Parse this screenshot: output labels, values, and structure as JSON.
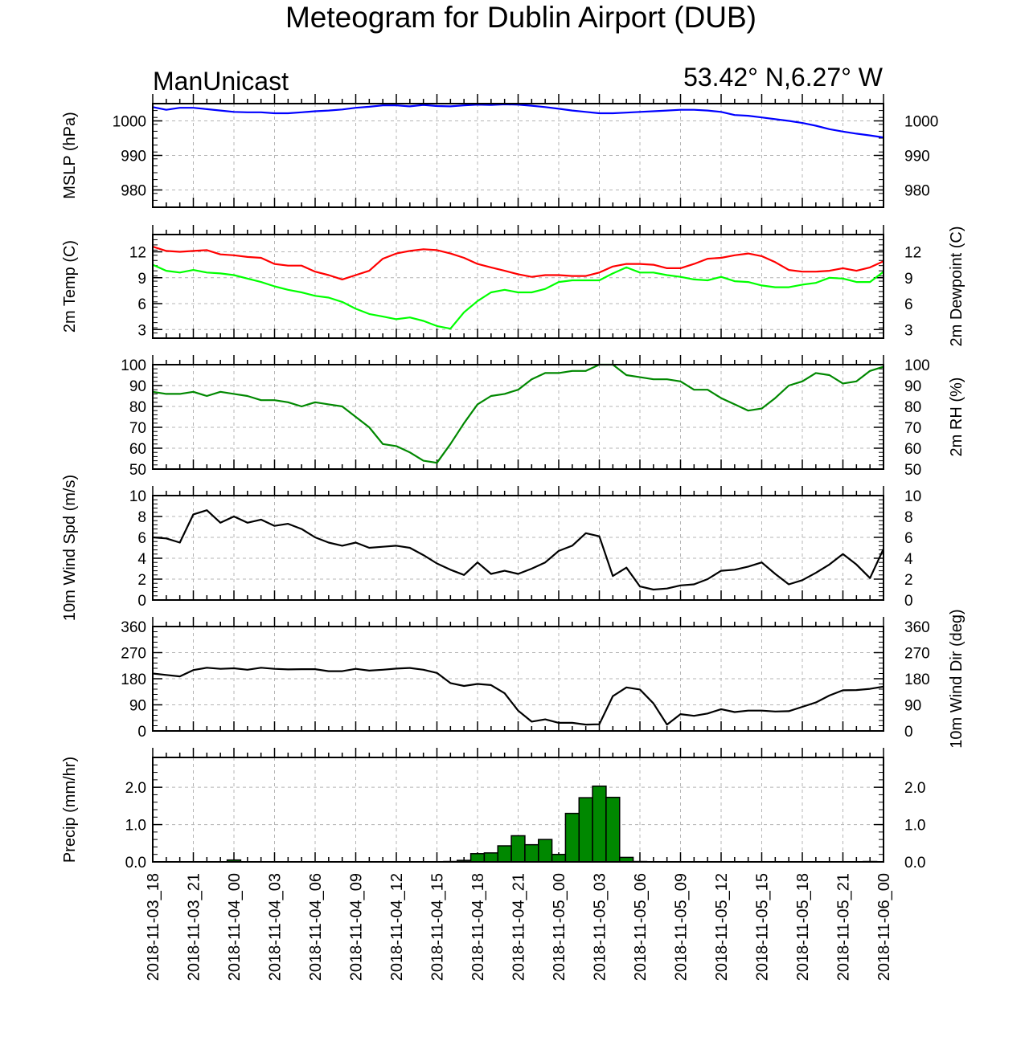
{
  "header": {
    "title": "Meteogram for Dublin Airport (DUB)",
    "model": "ManUnicast",
    "location": "53.42° N,6.27° W"
  },
  "time_axis": {
    "labels": [
      "2018-11-03_18",
      "2018-11-03_21",
      "2018-11-04_00",
      "2018-11-04_03",
      "2018-11-04_06",
      "2018-11-04_09",
      "2018-11-04_12",
      "2018-11-04_15",
      "2018-11-04_18",
      "2018-11-04_21",
      "2018-11-05_00",
      "2018-11-05_03",
      "2018-11-05_06",
      "2018-11-05_09",
      "2018-11-05_12",
      "2018-11-05_15",
      "2018-11-05_18",
      "2018-11-05_21",
      "2018-11-06_00"
    ],
    "start_hour": 0,
    "end_hour": 54,
    "label_every_hours": 3
  },
  "colors": {
    "mslp": "#0000ff",
    "temp": "#ff0000",
    "dewpoint": "#00ff00",
    "rh": "#008800",
    "wind": "#000000",
    "precip_fill": "#008800",
    "grid": "#b4b4b4"
  },
  "chart_data": [
    {
      "type": "line",
      "name": "mslp",
      "ylabel": "MSLP (hPa)",
      "ylabel_right": "",
      "ylim": [
        975,
        1005
      ],
      "ticks": [
        980,
        990,
        1000
      ],
      "x": [
        0,
        1,
        2,
        3,
        4,
        5,
        6,
        7,
        8,
        9,
        10,
        11,
        12,
        13,
        14,
        15,
        16,
        17,
        18,
        19,
        20,
        21,
        22,
        23,
        24,
        25,
        26,
        27,
        28,
        29,
        30,
        31,
        32,
        33,
        34,
        35,
        36,
        37,
        38,
        39,
        40,
        41,
        42,
        43,
        44,
        45,
        46,
        47,
        48,
        49,
        50,
        51,
        52,
        53,
        54
      ],
      "series": [
        {
          "values": [
            1004,
            1003.2,
            1003.8,
            1003.8,
            1003.4,
            1003,
            1002.6,
            1002.5,
            1002.5,
            1002.2,
            1002.2,
            1002.5,
            1002.8,
            1003.0,
            1003.3,
            1003.8,
            1004.1,
            1004.5,
            1004.5,
            1004.2,
            1004.6,
            1004.3,
            1004.2,
            1004.5,
            1004.7,
            1004.6,
            1004.8,
            1004.7,
            1004.4,
            1004.0,
            1003.5,
            1003.0,
            1002.6,
            1002.2,
            1002.2,
            1002.4,
            1002.6,
            1002.8,
            1003.0,
            1003.2,
            1003.2,
            1003.0,
            1002.6,
            1001.7,
            1001.5,
            1001.0,
            1000.5,
            1000.0,
            999.4,
            998.6,
            997.6,
            996.9,
            996.3,
            995.8,
            995.2
          ]
        }
      ]
    },
    {
      "type": "line",
      "name": "temperature",
      "ylabel": "2m Temp (C)",
      "ylabel_right": "2m Dewpoint (C)",
      "ylim": [
        2,
        14
      ],
      "ticks": [
        3,
        6,
        9,
        12
      ],
      "x": [
        0,
        1,
        2,
        3,
        4,
        5,
        6,
        7,
        8,
        9,
        10,
        11,
        12,
        13,
        14,
        15,
        16,
        17,
        18,
        19,
        20,
        21,
        22,
        23,
        24,
        25,
        26,
        27,
        28,
        29,
        30,
        31,
        32,
        33,
        34,
        35,
        36,
        37,
        38,
        39,
        40,
        41,
        42,
        43,
        44,
        45,
        46,
        47,
        48,
        49,
        50,
        51,
        52,
        53,
        54
      ],
      "series": [
        {
          "name": "temp",
          "values": [
            12.6,
            12.1,
            12.0,
            12.1,
            12.2,
            11.7,
            11.6,
            11.4,
            11.3,
            10.6,
            10.4,
            10.4,
            9.7,
            9.3,
            8.8,
            9.3,
            9.8,
            11.2,
            11.8,
            12.1,
            12.3,
            12.2,
            11.8,
            11.3,
            10.6,
            10.2,
            9.8,
            9.4,
            9.1,
            9.3,
            9.3,
            9.2,
            9.2,
            9.6,
            10.3,
            10.6,
            10.6,
            10.5,
            10.1,
            10.1,
            10.6,
            11.2,
            11.3,
            11.6,
            11.8,
            11.5,
            10.8,
            9.9,
            9.7,
            9.7,
            9.8,
            10.1,
            9.8,
            10.2,
            10.9
          ]
        },
        {
          "name": "dewpoint",
          "values": [
            10.5,
            9.8,
            9.6,
            9.9,
            9.6,
            9.5,
            9.3,
            8.9,
            8.5,
            8.0,
            7.6,
            7.3,
            6.9,
            6.7,
            6.2,
            5.4,
            4.8,
            4.5,
            4.2,
            4.4,
            4.0,
            3.4,
            3.1,
            5.0,
            6.3,
            7.3,
            7.6,
            7.3,
            7.3,
            7.7,
            8.5,
            8.7,
            8.7,
            8.7,
            9.5,
            10.2,
            9.6,
            9.6,
            9.3,
            9.1,
            8.8,
            8.7,
            9.1,
            8.6,
            8.5,
            8.1,
            7.9,
            7.9,
            8.2,
            8.4,
            9.0,
            8.9,
            8.5,
            8.5,
            9.7
          ]
        }
      ]
    },
    {
      "type": "line",
      "name": "relative_humidity",
      "ylabel": "",
      "ylabel_right": "2m RH (%)",
      "ylim": [
        50,
        100
      ],
      "ticks": [
        50,
        60,
        70,
        80,
        90,
        100
      ],
      "x": [
        0,
        1,
        2,
        3,
        4,
        5,
        6,
        7,
        8,
        9,
        10,
        11,
        12,
        13,
        14,
        15,
        16,
        17,
        18,
        19,
        20,
        21,
        22,
        23,
        24,
        25,
        26,
        27,
        28,
        29,
        30,
        31,
        32,
        33,
        34,
        35,
        36,
        37,
        38,
        39,
        40,
        41,
        42,
        43,
        44,
        45,
        46,
        47,
        48,
        49,
        50,
        51,
        52,
        53,
        54
      ],
      "series": [
        {
          "values": [
            87,
            86,
            86,
            87,
            85,
            87,
            86,
            85,
            83,
            83,
            82,
            80,
            82,
            81,
            80,
            75,
            70,
            62,
            61,
            58,
            54,
            53,
            62,
            72,
            81,
            85,
            86,
            88,
            93,
            96,
            96,
            97,
            97,
            100,
            100,
            95,
            94,
            93,
            93,
            92,
            88,
            88,
            84,
            81,
            78,
            79,
            84,
            90,
            92,
            96,
            95,
            91,
            92,
            97,
            99
          ]
        }
      ]
    },
    {
      "type": "line",
      "name": "wind_speed",
      "ylabel": "10m Wind Spd (m/s)",
      "ylabel_right": "",
      "ylim": [
        0,
        10
      ],
      "ticks": [
        0,
        2,
        4,
        6,
        8,
        10
      ],
      "x": [
        0,
        1,
        2,
        3,
        4,
        5,
        6,
        7,
        8,
        9,
        10,
        11,
        12,
        13,
        14,
        15,
        16,
        17,
        18,
        19,
        20,
        21,
        22,
        23,
        24,
        25,
        26,
        27,
        28,
        29,
        30,
        31,
        32,
        33,
        34,
        35,
        36,
        37,
        38,
        39,
        40,
        41,
        42,
        43,
        44,
        45,
        46,
        47,
        48,
        49,
        50,
        51,
        52,
        53,
        54
      ],
      "series": [
        {
          "values": [
            6.0,
            5.9,
            5.5,
            8.2,
            8.6,
            7.4,
            8.0,
            7.4,
            7.7,
            7.1,
            7.3,
            6.8,
            6.0,
            5.5,
            5.2,
            5.5,
            5.0,
            5.1,
            5.2,
            5.0,
            4.3,
            3.5,
            2.9,
            2.4,
            3.6,
            2.5,
            2.8,
            2.5,
            3.0,
            3.6,
            4.7,
            5.2,
            6.4,
            6.1,
            2.3,
            3.1,
            1.3,
            1.0,
            1.1,
            1.4,
            1.5,
            2.0,
            2.8,
            2.9,
            3.2,
            3.6,
            2.5,
            1.5,
            1.9,
            2.6,
            3.4,
            4.4,
            3.4,
            2.1,
            4.9
          ]
        }
      ]
    },
    {
      "type": "line",
      "name": "wind_direction",
      "ylabel": "",
      "ylabel_right": "10m Wind Dir (deg)",
      "ylim": [
        0,
        360
      ],
      "ticks": [
        0,
        90,
        180,
        270,
        360
      ],
      "x": [
        0,
        1,
        2,
        3,
        4,
        5,
        6,
        7,
        8,
        9,
        10,
        11,
        12,
        13,
        14,
        15,
        16,
        17,
        18,
        19,
        20,
        21,
        22,
        23,
        24,
        25,
        26,
        27,
        28,
        29,
        30,
        31,
        32,
        33,
        34,
        35,
        36,
        37,
        38,
        39,
        40,
        41,
        42,
        43,
        44,
        45,
        46,
        47,
        48,
        49,
        50,
        51,
        52,
        53,
        54
      ],
      "series": [
        {
          "values": [
            198,
            193,
            188,
            210,
            218,
            214,
            216,
            211,
            218,
            214,
            212,
            213,
            213,
            206,
            206,
            214,
            208,
            211,
            215,
            217,
            211,
            200,
            165,
            155,
            162,
            158,
            130,
            70,
            32,
            40,
            28,
            28,
            22,
            23,
            120,
            150,
            143,
            95,
            22,
            58,
            52,
            60,
            75,
            65,
            70,
            70,
            67,
            68,
            83,
            98,
            122,
            140,
            141,
            145,
            153
          ]
        }
      ]
    },
    {
      "type": "bar",
      "name": "precipitation",
      "ylabel": "Precip (mm/hr)",
      "ylabel_right": "",
      "ylim": [
        0,
        2.8
      ],
      "ticks": [
        0.0,
        1.0,
        2.0
      ],
      "tick_labels": [
        "0.0",
        "1.0",
        "2.0"
      ],
      "x": [
        6,
        22,
        23,
        24,
        25,
        26,
        27,
        28,
        29,
        30,
        31,
        32,
        33,
        34,
        35,
        36,
        53
      ],
      "values": [
        0.05,
        0.01,
        0.04,
        0.22,
        0.24,
        0.43,
        0.7,
        0.46,
        0.6,
        0.2,
        1.3,
        1.72,
        2.03,
        1.73,
        0.12,
        0.01,
        0.01
      ]
    }
  ]
}
